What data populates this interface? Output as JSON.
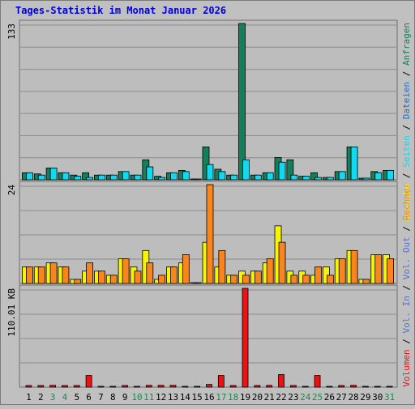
{
  "title": "Tages-Statistik im Monat Januar 2026",
  "colors": {
    "background": "#c0c0c0",
    "panel": "#bdbdbd",
    "grid": "#8c8c8c",
    "title": "#0000dd",
    "anfragen": "#157e5a",
    "dateien": "#1d6fcb",
    "seiten": "#13d9f0",
    "besuche": "#f4f409",
    "rechner": "#f8851e",
    "volumen": "#ee1111",
    "weekend_tick": "#1c8a4c",
    "tick": "#000000"
  },
  "legend_right_top": [
    "Anfragen",
    "/",
    "Dateien",
    "/",
    "Seiten",
    "/",
    "Besuche"
  ],
  "legend_right_mid": [
    "Rechner",
    "/",
    "Vol. Out",
    "/",
    "Vol. In",
    "/",
    "Volumen"
  ],
  "chart_data": [
    {
      "type": "bar",
      "panel": "requests",
      "ymax_label": "133",
      "ylim": [
        0,
        133
      ],
      "categories": [
        "1",
        "2",
        "3",
        "4",
        "5",
        "6",
        "7",
        "8",
        "9",
        "10",
        "11",
        "12",
        "13",
        "14",
        "15",
        "16",
        "17",
        "18",
        "19",
        "20",
        "21",
        "22",
        "23",
        "24",
        "25",
        "26",
        "27",
        "28",
        "29",
        "30",
        "31"
      ],
      "weekend_days": [
        "3",
        "4",
        "10",
        "11",
        "17",
        "18",
        "24",
        "25",
        "31"
      ],
      "series": [
        {
          "name": "Anfragen",
          "values": [
            6,
            5,
            10,
            6,
            4,
            6,
            4,
            4,
            7,
            4,
            17,
            3,
            6,
            8,
            0,
            28,
            9,
            4,
            133,
            4,
            6,
            19,
            17,
            3,
            6,
            2,
            7,
            28,
            1,
            7,
            8
          ]
        },
        {
          "name": "Seiten",
          "values": [
            6,
            4,
            10,
            6,
            3,
            2,
            4,
            4,
            7,
            4,
            11,
            2,
            6,
            7,
            0,
            13,
            7,
            4,
            17,
            4,
            6,
            15,
            4,
            3,
            2,
            2,
            7,
            28,
            1,
            6,
            8
          ]
        }
      ]
    },
    {
      "type": "bar",
      "panel": "visits",
      "ymax_label": "24",
      "ylim": [
        0,
        24
      ],
      "categories": [
        "1",
        "2",
        "3",
        "4",
        "5",
        "6",
        "7",
        "8",
        "9",
        "10",
        "11",
        "12",
        "13",
        "14",
        "15",
        "16",
        "17",
        "18",
        "19",
        "20",
        "21",
        "22",
        "23",
        "24",
        "25",
        "26",
        "27",
        "28",
        "29",
        "30",
        "31"
      ],
      "series": [
        {
          "name": "Besuche",
          "values": [
            4,
            4,
            5,
            4,
            1,
            3,
            3,
            2,
            6,
            4,
            8,
            1,
            4,
            5,
            0,
            10,
            4,
            2,
            3,
            3,
            5,
            14,
            3,
            3,
            2,
            4,
            6,
            8,
            1,
            7,
            7
          ]
        },
        {
          "name": "Rechner",
          "values": [
            4,
            4,
            5,
            4,
            1,
            5,
            3,
            2,
            6,
            3,
            5,
            2,
            4,
            7,
            0,
            24,
            8,
            2,
            2,
            3,
            6,
            10,
            2,
            2,
            4,
            2,
            6,
            8,
            1,
            7,
            6
          ]
        }
      ]
    },
    {
      "type": "bar",
      "panel": "volume",
      "ymax_label": "110.01 KB",
      "ylim": [
        0,
        110.01
      ],
      "categories": [
        "1",
        "2",
        "3",
        "4",
        "5",
        "6",
        "7",
        "8",
        "9",
        "10",
        "11",
        "12",
        "13",
        "14",
        "15",
        "16",
        "17",
        "18",
        "19",
        "20",
        "21",
        "22",
        "23",
        "24",
        "25",
        "26",
        "27",
        "28",
        "29",
        "30",
        "31"
      ],
      "series": [
        {
          "name": "Volumen",
          "values": [
            1,
            1,
            2,
            1,
            1,
            13,
            0,
            0,
            1,
            0,
            2,
            2,
            2,
            0,
            0,
            3,
            13,
            1,
            110.01,
            1,
            2,
            14,
            1,
            0,
            13,
            0,
            1,
            2,
            0,
            0,
            0
          ]
        }
      ]
    }
  ]
}
